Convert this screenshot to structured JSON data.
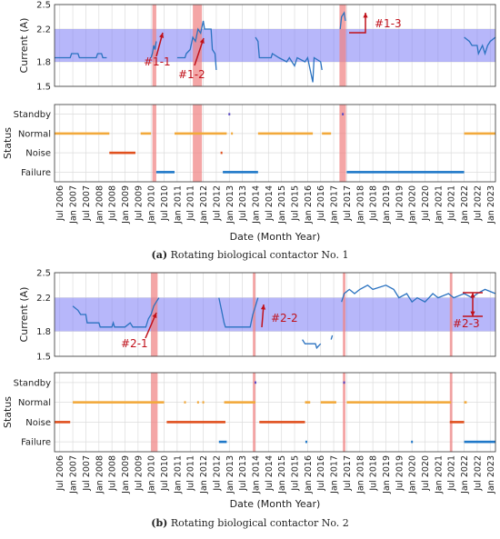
{
  "chart_data": [
    {
      "type": "line",
      "caption_label": "(a)",
      "caption": "Rotating biological contactor No. 1",
      "xlabel": "Date (Month Year)",
      "xlim": [
        2006.3,
        2023.2
      ],
      "xticks": [
        {
          "value": 2006.5,
          "label": "Jul 2006"
        },
        {
          "value": 2007.0,
          "label": "Jan 2007"
        },
        {
          "value": 2007.5,
          "label": "Jul 2007"
        },
        {
          "value": 2008.0,
          "label": "Jan 2008"
        },
        {
          "value": 2008.5,
          "label": "Jul 2008"
        },
        {
          "value": 2009.0,
          "label": "Jan 2009"
        },
        {
          "value": 2009.5,
          "label": "Jul 2009"
        },
        {
          "value": 2010.0,
          "label": "Jan 2010"
        },
        {
          "value": 2010.5,
          "label": "Jul 2010"
        },
        {
          "value": 2011.0,
          "label": "Jan 2011"
        },
        {
          "value": 2011.5,
          "label": "Jul 2011"
        },
        {
          "value": 2012.0,
          "label": "Jan 2012"
        },
        {
          "value": 2012.5,
          "label": "Jul 2012"
        },
        {
          "value": 2013.0,
          "label": "Jan 2013"
        },
        {
          "value": 2013.5,
          "label": "Jul 2013"
        },
        {
          "value": 2014.0,
          "label": "Jan 2014"
        },
        {
          "value": 2014.5,
          "label": "Jul 2014"
        },
        {
          "value": 2015.0,
          "label": "Jan 2015"
        },
        {
          "value": 2015.5,
          "label": "Jul 2015"
        },
        {
          "value": 2016.0,
          "label": "Jan 2016"
        },
        {
          "value": 2016.5,
          "label": "Jul 2016"
        },
        {
          "value": 2017.0,
          "label": "Jan 2017"
        },
        {
          "value": 2017.5,
          "label": "Jul 2017"
        },
        {
          "value": 2018.0,
          "label": "Jan 2018"
        },
        {
          "value": 2018.5,
          "label": "Jul 2018"
        },
        {
          "value": 2019.0,
          "label": "Jan 2019"
        },
        {
          "value": 2019.5,
          "label": "Jul 2019"
        },
        {
          "value": 2020.0,
          "label": "Jan 2020"
        },
        {
          "value": 2020.5,
          "label": "Jul 2020"
        },
        {
          "value": 2021.0,
          "label": "Jan 2021"
        },
        {
          "value": 2021.5,
          "label": "Jul 2021"
        },
        {
          "value": 2022.0,
          "label": "Jan 2022"
        },
        {
          "value": 2022.5,
          "label": "Jul 2022"
        },
        {
          "value": 2023.0,
          "label": "Jan 2023"
        }
      ],
      "highlights": {
        "color": "#f08080",
        "start": [
          2010.05,
          2011.6,
          2017.22
        ],
        "end": [
          2010.2,
          2011.95,
          2017.47
        ]
      },
      "annotations": [
        "#1-1",
        "#1-2",
        "#1-3"
      ],
      "annotation_color": "#c0101a",
      "current": {
        "ylabel": "Current (A)",
        "ylim": [
          1.5,
          2.5
        ],
        "yticks": [
          1.5,
          1.8,
          2.2,
          2.5
        ],
        "band": [
          1.8,
          2.2
        ],
        "band_color": "#7b7bf5",
        "color": "#2a72c0",
        "x": [
          2006.3,
          2006.9,
          2006.95,
          2007.2,
          2007.25,
          2007.9,
          2007.95,
          2008.1,
          2008.15,
          2008.3,
          2008.35,
          2010.0,
          2010.05,
          2010.1,
          2010.15,
          2010.2,
          2010.25,
          2011.0,
          2011.3,
          2011.35,
          2011.5,
          2011.6,
          2011.7,
          2011.8,
          2011.9,
          2012.0,
          2012.05,
          2012.3,
          2012.35,
          2012.45,
          2012.5,
          2012.55,
          2014.0,
          2014.1,
          2014.15,
          2014.6,
          2014.65,
          2014.9,
          2015.2,
          2015.3,
          2015.5,
          2015.6,
          2015.9,
          2016.0,
          2016.2,
          2016.25,
          2016.5,
          2016.55,
          2016.6,
          2017.25,
          2017.3,
          2017.4,
          2017.45,
          2017.5,
          2022.0,
          2022.2,
          2022.3,
          2022.5,
          2022.55,
          2022.7,
          2022.8,
          2022.9,
          2023.0,
          2023.2
        ],
        "values": [
          1.85,
          1.85,
          1.9,
          1.9,
          1.85,
          1.85,
          1.9,
          1.9,
          1.85,
          1.85,
          null,
          1.85,
          1.9,
          2.0,
          1.95,
          2.05,
          null,
          1.85,
          1.85,
          1.9,
          1.95,
          2.1,
          2.05,
          2.2,
          2.15,
          2.3,
          2.2,
          2.2,
          1.95,
          1.9,
          1.7,
          null,
          2.1,
          2.05,
          1.85,
          1.85,
          1.9,
          1.85,
          1.8,
          1.85,
          1.75,
          1.85,
          1.8,
          1.85,
          1.55,
          1.85,
          1.8,
          1.7,
          null,
          2.2,
          2.35,
          2.4,
          2.3,
          null,
          2.1,
          2.05,
          2.0,
          2.0,
          1.9,
          2.0,
          1.9,
          2.0,
          2.05,
          2.1
        ]
      },
      "status": {
        "ylabel": "Status",
        "ylim": [
          0.5,
          4.5
        ],
        "yticks": [
          {
            "value": 1,
            "label": "Failure"
          },
          {
            "value": 2,
            "label": "Noise"
          },
          {
            "value": 3,
            "label": "Normal"
          },
          {
            "value": 4,
            "label": "Standby"
          }
        ],
        "level_colors": [
          "#1f78c8",
          "#e0501e",
          "#f2a93b",
          "#5b4bc4"
        ],
        "start": [
          2006.3,
          2008.4,
          2009.6,
          2010.2,
          2010.9,
          2012.75,
          2012.7,
          2013.1,
          2013.0,
          2014.1,
          2016.55,
          2017.35,
          2017.5,
          2022.0
        ],
        "end": [
          2008.4,
          2009.4,
          2010.0,
          2010.9,
          2012.9,
          2014.1,
          2012.7,
          2013.1,
          2013.0,
          2016.2,
          2016.9,
          2017.35,
          2022.0,
          2023.2
        ],
        "level": [
          3,
          2,
          3,
          1,
          3,
          1,
          2,
          3,
          4,
          3,
          3,
          4,
          1,
          3
        ]
      }
    },
    {
      "type": "line",
      "caption_label": "(b)",
      "caption": "Rotating biological contactor No. 2",
      "xlabel": "Date (Month Year)",
      "xlim": [
        2006.3,
        2023.2
      ],
      "xticks": [
        {
          "value": 2006.5,
          "label": "Jul 2006"
        },
        {
          "value": 2007.0,
          "label": "Jan 2007"
        },
        {
          "value": 2007.5,
          "label": "Jul 2007"
        },
        {
          "value": 2008.0,
          "label": "Jan 2008"
        },
        {
          "value": 2008.5,
          "label": "Jul 2008"
        },
        {
          "value": 2009.0,
          "label": "Jan 2009"
        },
        {
          "value": 2009.5,
          "label": "Jul 2009"
        },
        {
          "value": 2010.0,
          "label": "Jan 2010"
        },
        {
          "value": 2010.5,
          "label": "Jul 2010"
        },
        {
          "value": 2011.0,
          "label": "Jan 2011"
        },
        {
          "value": 2011.5,
          "label": "Jul 2011"
        },
        {
          "value": 2012.0,
          "label": "Jan 2012"
        },
        {
          "value": 2012.5,
          "label": "Jul 2012"
        },
        {
          "value": 2013.0,
          "label": "Jan 2013"
        },
        {
          "value": 2013.5,
          "label": "Jul 2013"
        },
        {
          "value": 2014.0,
          "label": "Jan 2014"
        },
        {
          "value": 2014.5,
          "label": "Jul 2014"
        },
        {
          "value": 2015.0,
          "label": "Jan 2015"
        },
        {
          "value": 2015.5,
          "label": "Jul 2015"
        },
        {
          "value": 2016.0,
          "label": "Jan 2016"
        },
        {
          "value": 2016.5,
          "label": "Jul 2016"
        },
        {
          "value": 2017.0,
          "label": "Jan 2017"
        },
        {
          "value": 2017.5,
          "label": "Jul 2017"
        },
        {
          "value": 2018.0,
          "label": "Jan 2018"
        },
        {
          "value": 2018.5,
          "label": "Jul 2018"
        },
        {
          "value": 2019.0,
          "label": "Jan 2019"
        },
        {
          "value": 2019.5,
          "label": "Jul 2019"
        },
        {
          "value": 2020.0,
          "label": "Jan 2020"
        },
        {
          "value": 2020.5,
          "label": "Jul 2020"
        },
        {
          "value": 2021.0,
          "label": "Jan 2021"
        },
        {
          "value": 2021.5,
          "label": "Jul 2021"
        },
        {
          "value": 2022.0,
          "label": "Jan 2022"
        },
        {
          "value": 2022.5,
          "label": "Jul 2022"
        },
        {
          "value": 2023.0,
          "label": "Jan 2023"
        }
      ],
      "highlights": {
        "color": "#f08080",
        "start": [
          2010.0,
          2013.9,
          2017.35,
          2021.45
        ],
        "end": [
          2010.25,
          2014.0,
          2017.45,
          2021.55
        ]
      },
      "annotations": [
        "#2-1",
        "#2-2",
        "#2-3"
      ],
      "annotation_color": "#c0101a",
      "current": {
        "ylabel": "Current (A)",
        "ylim": [
          1.5,
          2.5
        ],
        "yticks": [
          1.5,
          1.8,
          2.2,
          2.5
        ],
        "band": [
          1.8,
          2.2
        ],
        "band_color": "#7b7bf5",
        "color": "#2a72c0",
        "x": [
          2007.0,
          2007.2,
          2007.3,
          2007.5,
          2007.55,
          2008.0,
          2008.05,
          2008.5,
          2008.55,
          2008.6,
          2009.0,
          2009.2,
          2009.3,
          2009.8,
          2009.9,
          2010.0,
          2010.1,
          2010.2,
          2010.3,
          2010.35,
          2012.6,
          2012.7,
          2012.8,
          2012.85,
          2013.8,
          2013.9,
          2014.0,
          2014.1,
          2014.15,
          2015.8,
          2015.9,
          2016.3,
          2016.35,
          2016.5,
          2016.55,
          2016.9,
          2016.95,
          2017.0,
          2017.3,
          2017.4,
          2017.6,
          2017.8,
          2018.0,
          2018.3,
          2018.5,
          2019.0,
          2019.3,
          2019.5,
          2019.8,
          2020.0,
          2020.2,
          2020.5,
          2020.8,
          2021.0,
          2021.4,
          2021.6,
          2022.0,
          2022.3,
          2022.5,
          2022.8,
          2023.2
        ],
        "values": [
          2.1,
          2.05,
          2.0,
          2.0,
          1.9,
          1.9,
          1.85,
          1.85,
          1.9,
          1.85,
          1.85,
          1.9,
          1.85,
          1.85,
          1.95,
          2.0,
          2.1,
          2.15,
          2.2,
          null,
          2.2,
          2.05,
          1.9,
          1.85,
          1.85,
          2.0,
          2.1,
          2.2,
          null,
          1.7,
          1.65,
          1.65,
          1.6,
          1.65,
          null,
          1.7,
          1.75,
          null,
          2.15,
          2.25,
          2.3,
          2.25,
          2.3,
          2.35,
          2.3,
          2.35,
          2.3,
          2.2,
          2.25,
          2.15,
          2.2,
          2.15,
          2.25,
          2.2,
          2.25,
          2.2,
          2.25,
          2.2,
          2.25,
          2.3,
          2.25
        ]
      },
      "status": {
        "ylabel": "Status",
        "ylim": [
          0.5,
          4.5
        ],
        "yticks": [
          {
            "value": 1,
            "label": "Failure"
          },
          {
            "value": 2,
            "label": "Noise"
          },
          {
            "value": 3,
            "label": "Normal"
          },
          {
            "value": 4,
            "label": "Standby"
          }
        ],
        "level_colors": [
          "#1f78c8",
          "#e0501e",
          "#f2a93b",
          "#5b4bc4"
        ],
        "start": [
          2006.3,
          2007.0,
          2010.6,
          2011.3,
          2011.8,
          2012.0,
          2012.6,
          2012.8,
          2014.0,
          2014.15,
          2015.9,
          2015.95,
          2016.5,
          2017.4,
          2017.5,
          2020.0,
          2021.45,
          2022.0,
          2022.0
        ],
        "end": [
          2006.9,
          2010.5,
          2012.85,
          2011.3,
          2011.8,
          2012.0,
          2012.9,
          2014.0,
          2014.0,
          2015.9,
          2016.1,
          2015.95,
          2017.1,
          2017.4,
          2021.5,
          2020.0,
          2022.0,
          2022.1,
          2023.2
        ],
        "level": [
          2,
          3,
          2,
          3,
          3,
          3,
          1,
          3,
          4,
          2,
          3,
          1,
          3,
          4,
          3,
          1,
          2,
          3,
          1
        ]
      }
    }
  ]
}
